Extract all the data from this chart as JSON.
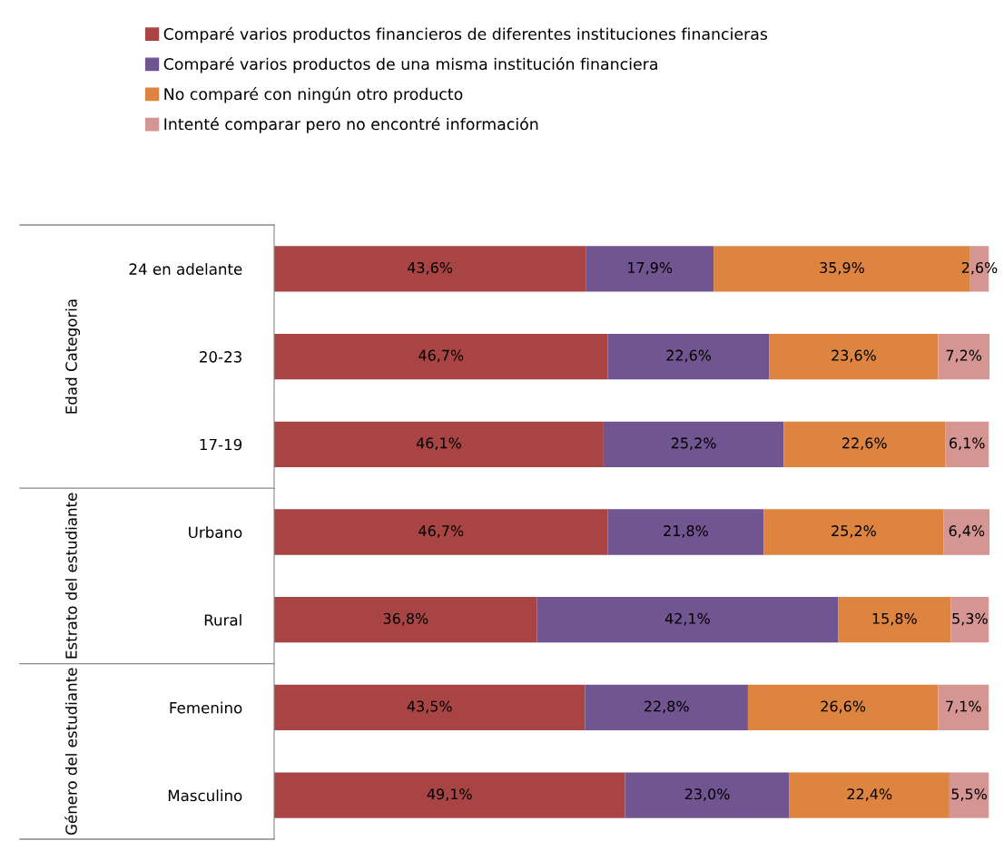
{
  "chart_data": {
    "type": "bar",
    "orientation": "horizontal",
    "stacked": true,
    "legend": "top",
    "tick_labels": "y",
    "categories": [
      "24 en adelante",
      "20-23",
      "17-19",
      "Urbano",
      "Rural",
      "Femenino",
      "Masculino"
    ],
    "annotations": [
      "Edad Categoria",
      "Estrato del estudiante",
      "Género del estudiante"
    ],
    "series": [
      {
        "name": "Comparé varios productos financieros de diferentes instituciones financieras",
        "color": "#a84544",
        "values": [
          43.6,
          46.7,
          46.1,
          46.7,
          36.8,
          43.5,
          49.1
        ],
        "value_labels": [
          "43,6%",
          "46,7%",
          "46,1%",
          "46,7%",
          "36,8%",
          "43,5%",
          "49,1%"
        ]
      },
      {
        "name": "Comparé varios productos de una misma institución financiera",
        "color": "#705590",
        "values": [
          17.9,
          22.6,
          25.2,
          21.8,
          42.1,
          22.8,
          23.0
        ],
        "value_labels": [
          "17,9%",
          "22,6%",
          "25,2%",
          "21,8%",
          "42,1%",
          "22,8%",
          "23,0%"
        ]
      },
      {
        "name": "No comparé con ningún otro producto",
        "color": "#dc8440",
        "values": [
          35.9,
          23.6,
          22.6,
          25.2,
          15.8,
          26.6,
          22.4
        ],
        "value_labels": [
          "35,9%",
          "23,6%",
          "22,6%",
          "25,2%",
          "15,8%",
          "26,6%",
          "22,4%"
        ]
      },
      {
        "name": "Intenté comparar pero no encontré información",
        "color": "#d59593",
        "values": [
          2.6,
          7.2,
          6.1,
          6.4,
          5.3,
          7.1,
          5.5
        ],
        "value_labels": [
          "2,6%",
          "7,2%",
          "6,1%",
          "6,4%",
          "5,3%",
          "7,1%",
          "5,5%"
        ]
      }
    ]
  }
}
